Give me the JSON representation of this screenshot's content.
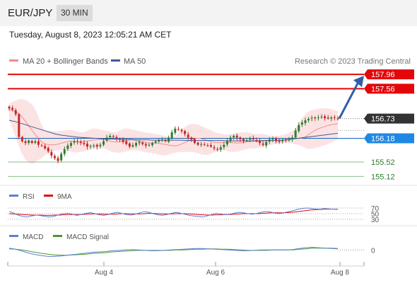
{
  "header": {
    "pair": "EUR/JPY",
    "timeframe": "30 MIN"
  },
  "date_line": "Tuesday, August 8, 2023 12:05:21 AM CET",
  "legend": {
    "ma20_label": "MA 20 + Bollinger Bands",
    "ma50_label": "MA 50"
  },
  "copyright": "Research © 2023 Trading Central",
  "rsi_legend": {
    "rsi": "RSI",
    "ma": "9MA"
  },
  "macd_legend": {
    "macd": "MACD",
    "signal": "MACD Signal"
  },
  "colors": {
    "resistance": "#e3070b",
    "support": "#2b8a2b",
    "current": "#333333",
    "pivot": "#1565c0",
    "bollinger": "#fbdcdc",
    "ma50": "#3d5a99",
    "candle_up": "#2e7d32",
    "candle_down": "#c62828",
    "arrow": "#2e5fa5"
  },
  "chart_data": {
    "type": "candlestick",
    "x_axis": {
      "tick_labels": [
        "Aug 4",
        "Aug 6",
        "Aug 8"
      ]
    },
    "y_range": [
      154.95,
      158.1
    ],
    "levels": [
      {
        "label": "157.96",
        "value": 157.96,
        "kind": "resistance"
      },
      {
        "label": "157.56",
        "value": 157.56,
        "kind": "resistance"
      },
      {
        "label": "156.73",
        "value": 156.73,
        "kind": "current"
      },
      {
        "label": "156.18",
        "value": 156.18,
        "kind": "pivot"
      },
      {
        "label": "155.52",
        "value": 155.52,
        "kind": "support"
      },
      {
        "label": "155.12",
        "value": 155.12,
        "kind": "support"
      }
    ],
    "close": [
      157.01,
      156.98,
      156.85,
      156.22,
      156.1,
      156.05,
      156.12,
      156.05,
      156.1,
      156.0,
      155.98,
      155.9,
      155.82,
      155.7,
      155.63,
      155.55,
      155.75,
      155.88,
      155.98,
      156.05,
      156.1,
      156.08,
      156.05,
      156.02,
      155.95,
      155.97,
      155.98,
      155.95,
      156.0,
      156.1,
      156.2,
      156.25,
      156.22,
      156.18,
      156.15,
      156.08,
      156.02,
      155.95,
      155.99,
      156.05,
      156.08,
      156.02,
      155.98,
      156.0,
      156.05,
      156.1,
      156.12,
      156.15,
      156.1,
      156.2,
      156.35,
      156.45,
      156.42,
      156.38,
      156.3,
      156.2,
      156.15,
      156.05,
      156.0,
      156.02,
      156.0,
      155.98,
      155.95,
      155.9,
      155.88,
      155.93,
      156.0,
      156.1,
      156.2,
      156.25,
      156.2,
      156.15,
      156.1,
      156.13,
      156.18,
      156.15,
      156.1,
      156.05,
      156.0,
      156.08,
      156.15,
      156.17,
      156.1,
      156.08,
      156.13,
      156.12,
      156.15,
      156.2,
      156.4,
      156.55,
      156.62,
      156.68,
      156.72,
      156.75,
      156.74,
      156.76,
      156.78,
      156.74,
      156.73,
      156.76,
      156.75,
      156.73
    ],
    "bollinger_upper": [
      157.15,
      157.2,
      157.25,
      157.28,
      157.25,
      157.2,
      157.1,
      156.9,
      156.6,
      156.4,
      156.38,
      156.38,
      156.38,
      156.38,
      156.4,
      156.42,
      156.4,
      156.38,
      156.35,
      156.35,
      156.4,
      156.45,
      156.45,
      156.42,
      156.4,
      156.38,
      156.35,
      156.35,
      156.4,
      156.45,
      156.45,
      156.42,
      156.4,
      156.38,
      156.35,
      156.33,
      156.32,
      156.3,
      156.28,
      156.25,
      156.23,
      156.2,
      156.25,
      156.35,
      156.45,
      156.55,
      156.58,
      156.58,
      156.55,
      156.5,
      156.45,
      156.4,
      156.35,
      156.32,
      156.3,
      156.28,
      156.3,
      156.32,
      156.33,
      156.35,
      156.35,
      156.33,
      156.3,
      156.3,
      156.3,
      156.28,
      156.25,
      156.25,
      156.25,
      156.27,
      156.3,
      156.35,
      156.42,
      156.55,
      156.75,
      156.88,
      156.95,
      156.98,
      157.0,
      157.02,
      157.02,
      157.0,
      156.97,
      156.93
    ],
    "bollinger_lower": [
      156.7,
      156.4,
      156.1,
      155.8,
      155.6,
      155.5,
      155.48,
      155.55,
      155.62,
      155.7,
      155.78,
      155.82,
      155.85,
      155.85,
      155.85,
      155.83,
      155.8,
      155.78,
      155.8,
      155.82,
      155.85,
      155.88,
      155.9,
      155.92,
      155.9,
      155.85,
      155.8,
      155.78,
      155.78,
      155.8,
      155.82,
      155.85,
      155.85,
      155.83,
      155.8,
      155.78,
      155.78,
      155.75,
      155.72,
      155.7,
      155.72,
      155.75,
      155.78,
      155.8,
      155.8,
      155.8,
      155.8,
      155.78,
      155.75,
      155.72,
      155.72,
      155.75,
      155.8,
      155.85,
      155.85,
      155.83,
      155.8,
      155.8,
      155.82,
      155.85,
      155.88,
      155.9,
      155.9,
      155.92,
      155.95,
      155.97,
      156.0,
      156.02,
      156.05,
      156.05,
      156.05,
      156.05,
      156.02,
      156.0,
      155.95,
      155.9,
      155.88,
      155.9,
      155.93,
      155.97,
      156.0,
      156.05,
      156.1,
      156.15
    ],
    "ma20": [
      156.98,
      156.95,
      156.9,
      156.8,
      156.65,
      156.5,
      156.35,
      156.2,
      156.08,
      156.02,
      156.0,
      156.0,
      156.02,
      156.05,
      156.08,
      156.1,
      156.1,
      156.08,
      156.08,
      156.1,
      156.12,
      156.14,
      156.15,
      156.15,
      156.13,
      156.1,
      156.08,
      156.08,
      156.1,
      156.12,
      156.14,
      156.13,
      156.1,
      156.08,
      156.06,
      156.05,
      156.05,
      156.04,
      156.02,
      156.0,
      155.98,
      155.97,
      156.0,
      156.05,
      156.1,
      156.15,
      156.18,
      156.18,
      156.15,
      156.12,
      156.08,
      156.06,
      156.06,
      156.07,
      156.07,
      156.06,
      156.05,
      156.05,
      156.07,
      156.09,
      156.1,
      156.1,
      156.1,
      156.11,
      156.12,
      156.12,
      156.12,
      156.13,
      156.14,
      156.15,
      156.16,
      156.17,
      156.18,
      156.22,
      156.3,
      156.38,
      156.44,
      156.48,
      156.52,
      156.55,
      156.57,
      156.59
    ],
    "ma50": [
      156.68,
      156.65,
      156.6,
      156.55,
      156.5,
      156.45,
      156.4,
      156.35,
      156.3,
      156.27,
      156.25,
      156.23,
      156.21,
      156.2,
      156.19,
      156.18,
      156.17,
      156.16,
      156.16,
      156.15,
      156.15,
      156.15,
      156.14,
      156.14,
      156.14,
      156.13,
      156.13,
      156.13,
      156.13,
      156.13,
      156.13,
      156.12,
      156.12,
      156.12,
      156.12,
      156.12,
      156.12,
      156.12,
      156.11,
      156.11,
      156.11,
      156.11,
      156.11,
      156.11,
      156.12,
      156.12,
      156.12,
      156.13,
      156.14,
      156.16,
      156.18,
      156.2,
      156.22,
      156.24,
      156.26,
      156.28,
      156.3,
      156.32
    ],
    "rsi": {
      "ticks": [
        "70",
        "50",
        "30"
      ],
      "y_range": [
        20,
        80
      ],
      "values": [
        58,
        52,
        45,
        40,
        38,
        42,
        45,
        43,
        40,
        38,
        41,
        46,
        50,
        52,
        48,
        44,
        47,
        51,
        54,
        50,
        46,
        44,
        47,
        52,
        55,
        51,
        47,
        45,
        48,
        53,
        57,
        55,
        50,
        46,
        44,
        47,
        51,
        55,
        52,
        48,
        44,
        42,
        40,
        38,
        42,
        47,
        51,
        49,
        46,
        48,
        52,
        55,
        53,
        50,
        48,
        51,
        55,
        58,
        56,
        52,
        50,
        53,
        57,
        60,
        65,
        68,
        70,
        69,
        67,
        66,
        68,
        67,
        66,
        65
      ],
      "ma9": [
        50,
        49,
        48,
        47,
        46,
        45,
        45,
        45,
        44,
        44,
        45,
        45,
        46,
        47,
        47,
        47,
        47,
        48,
        49,
        49,
        49,
        48,
        48,
        48,
        49,
        50,
        50,
        49,
        49,
        49,
        50,
        51,
        51,
        50,
        49,
        49,
        49,
        50,
        50,
        50,
        49,
        48,
        47,
        46,
        45,
        45,
        46,
        46,
        47,
        47,
        48,
        49,
        50,
        50,
        50,
        50,
        51,
        52,
        53,
        53,
        53,
        53,
        54,
        55,
        57,
        59,
        61,
        63,
        64,
        65,
        66,
        66,
        66,
        66
      ]
    },
    "macd": {
      "ticks": [
        "0"
      ],
      "y_range": [
        -0.35,
        0.25
      ],
      "macd": [
        0.05,
        0.02,
        -0.03,
        -0.08,
        -0.12,
        -0.15,
        -0.17,
        -0.17,
        -0.16,
        -0.14,
        -0.12,
        -0.1,
        -0.08,
        -0.06,
        -0.05,
        -0.04,
        -0.02,
        -0.01,
        0.0,
        0.01,
        0.0,
        -0.01,
        -0.02,
        -0.02,
        -0.01,
        0.0,
        0.01,
        0.02,
        0.03,
        0.04,
        0.04,
        0.03,
        0.02,
        0.01,
        0.0,
        -0.01,
        -0.02,
        -0.02,
        -0.01,
        0.0,
        0.0,
        0.0,
        0.0,
        0.0,
        0.01,
        0.04,
        0.06,
        0.07,
        0.06,
        0.05,
        0.04,
        0.03
      ],
      "signal": [
        0.03,
        0.02,
        0.0,
        -0.03,
        -0.06,
        -0.09,
        -0.11,
        -0.13,
        -0.14,
        -0.14,
        -0.13,
        -0.12,
        -0.11,
        -0.09,
        -0.08,
        -0.07,
        -0.05,
        -0.04,
        -0.03,
        -0.02,
        -0.01,
        -0.01,
        -0.01,
        -0.01,
        -0.01,
        -0.01,
        0.0,
        0.0,
        0.01,
        0.02,
        0.02,
        0.03,
        0.03,
        0.02,
        0.02,
        0.01,
        0.0,
        -0.01,
        -0.01,
        -0.01,
        -0.01,
        0.0,
        0.0,
        0.0,
        0.0,
        0.02,
        0.03,
        0.05,
        0.05,
        0.05,
        0.05,
        0.04
      ]
    }
  }
}
